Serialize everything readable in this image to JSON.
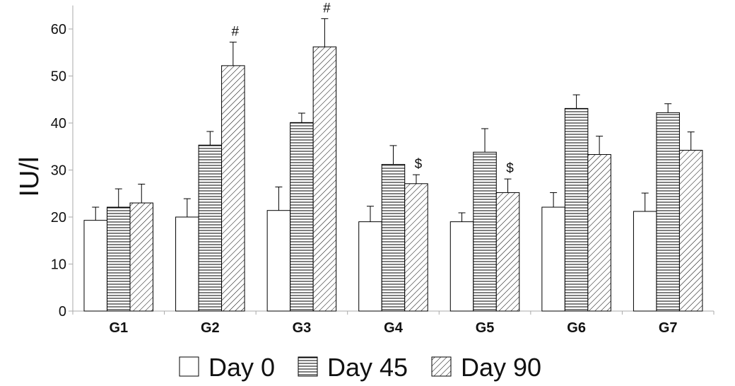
{
  "chart_data": {
    "type": "bar",
    "title": "",
    "xlabel": "",
    "ylabel": "IU/l",
    "ylim": [
      0,
      65
    ],
    "yticks": [
      0,
      10,
      20,
      30,
      40,
      50,
      60
    ],
    "grid": false,
    "legend_position": "bottom",
    "categories": [
      "G1",
      "G2",
      "G3",
      "G4",
      "G5",
      "G6",
      "G7"
    ],
    "series": [
      {
        "name": "Day 0",
        "pattern": "none",
        "values": [
          19.3,
          20.0,
          21.4,
          19.0,
          19.0,
          22.1,
          21.2
        ],
        "errors": [
          2.8,
          3.9,
          5.0,
          3.3,
          1.9,
          3.1,
          3.9
        ]
      },
      {
        "name": "Day 45",
        "pattern": "horizontal-lines",
        "values": [
          22.1,
          35.3,
          40.1,
          31.2,
          33.8,
          43.1,
          42.2
        ],
        "errors": [
          3.9,
          2.9,
          2.0,
          4.0,
          5.0,
          2.9,
          1.9
        ]
      },
      {
        "name": "Day 90",
        "pattern": "diagonal-hatch",
        "values": [
          23.0,
          52.2,
          56.2,
          27.1,
          25.2,
          33.3,
          34.2
        ],
        "errors": [
          4.0,
          5.0,
          6.0,
          1.9,
          2.9,
          3.9,
          3.9
        ]
      }
    ],
    "annotations": [
      {
        "category": "G2",
        "series": "Day 90",
        "text": "#"
      },
      {
        "category": "G3",
        "series": "Day 90",
        "text": "#"
      },
      {
        "category": "G4",
        "series": "Day 90",
        "text": "$"
      },
      {
        "category": "G5",
        "series": "Day 90",
        "text": "$"
      }
    ],
    "colors": {
      "bar_fill": "#ffffff",
      "bar_stroke": "#000000",
      "axis": "#aaaaaa"
    }
  }
}
